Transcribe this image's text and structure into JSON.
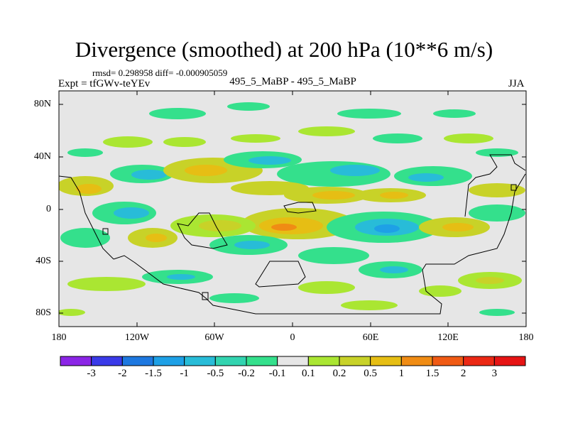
{
  "title": "Divergence (smoothed) at 200 hPa (10**6 m/s)",
  "stats": "rmsd= 0.298958 diff= -0.000905059",
  "experiment": "Expt = tfGWv-teYEv",
  "case": "495_5_MaBP - 495_5_MaBP",
  "season": "JJA",
  "axes": {
    "lat_labels": [
      "80N",
      "40N",
      "0",
      "40S",
      "80S"
    ],
    "lon_labels": [
      "180",
      "120W",
      "60W",
      "0",
      "60E",
      "120E",
      "180"
    ]
  },
  "colorbar": {
    "labels": [
      "-3",
      "-2",
      "-1.5",
      "-1",
      "-0.5",
      "-0.2",
      "-0.1",
      "0.1",
      "0.2",
      "0.5",
      "1",
      "1.5",
      "2",
      "3"
    ],
    "colors": [
      "#8b25e6",
      "#3a3ae8",
      "#1e78e0",
      "#1ea0e6",
      "#28bcd8",
      "#32d4b0",
      "#34e08c",
      "#e6e6e6",
      "#aae632",
      "#c8d228",
      "#e6be14",
      "#f08c14",
      "#f05a14",
      "#eb2814",
      "#e61414"
    ]
  },
  "field_colors": {
    "background": "#e6e6e6",
    "neg_weak": "#34e08c",
    "neg_mid": "#28bcd8",
    "neg_strong": "#1ea0e6",
    "pos_weak": "#aae632",
    "pos_mid": "#c8d228",
    "pos_strong": "#e6be14",
    "pos_max": "#f08c14"
  }
}
